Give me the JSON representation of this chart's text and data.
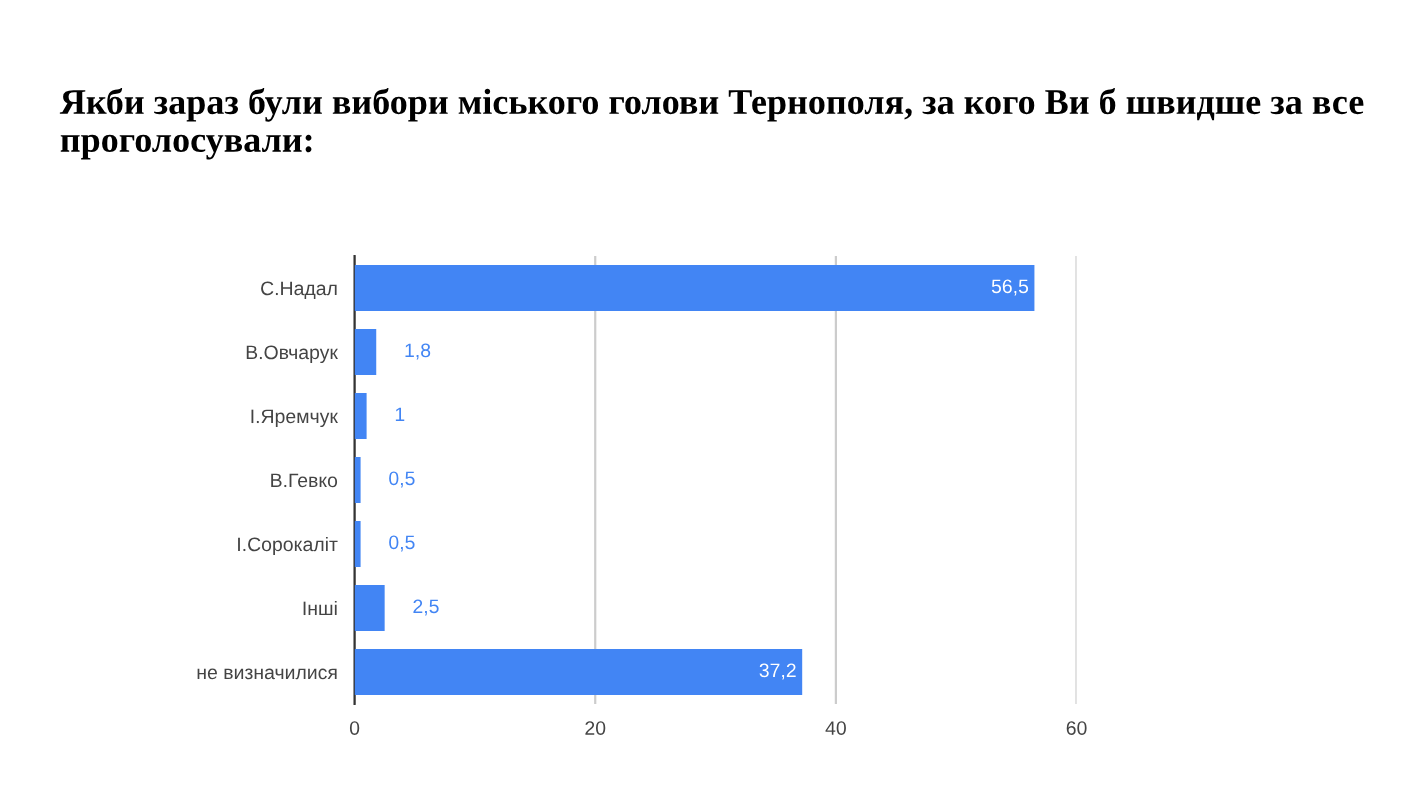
{
  "chart_data": {
    "type": "bar",
    "orientation": "horizontal",
    "title": "Якби зараз були вибори міського голови Тернополя, за кого Ви б швидше за все проголосували:",
    "categories": [
      "С.Надал",
      "В.Овчарук",
      "І.Яремчук",
      "В.Гевко",
      "І.Сорокаліт",
      "Інші",
      "не визначилися"
    ],
    "values": [
      56.5,
      1.8,
      1,
      0.5,
      0.5,
      2.5,
      37.2
    ],
    "value_labels": [
      "56,5",
      "1,8",
      "1",
      "0,5",
      "0,5",
      "2,5",
      "37,2"
    ],
    "color": "#4285f4",
    "xlim": [
      0,
      60
    ],
    "xticks": [
      0,
      20,
      40,
      60
    ],
    "grid": "x",
    "legend": false
  }
}
